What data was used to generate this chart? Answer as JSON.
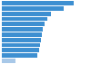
{
  "values": [
    70,
    60,
    48,
    44,
    42,
    40,
    39,
    38,
    37,
    36,
    35,
    13
  ],
  "bar_color": "#3d8fd1",
  "last_bar_color": "#a8c8e8",
  "background_color": "#ffffff",
  "xlim_max": 80,
  "bar_height": 0.82
}
